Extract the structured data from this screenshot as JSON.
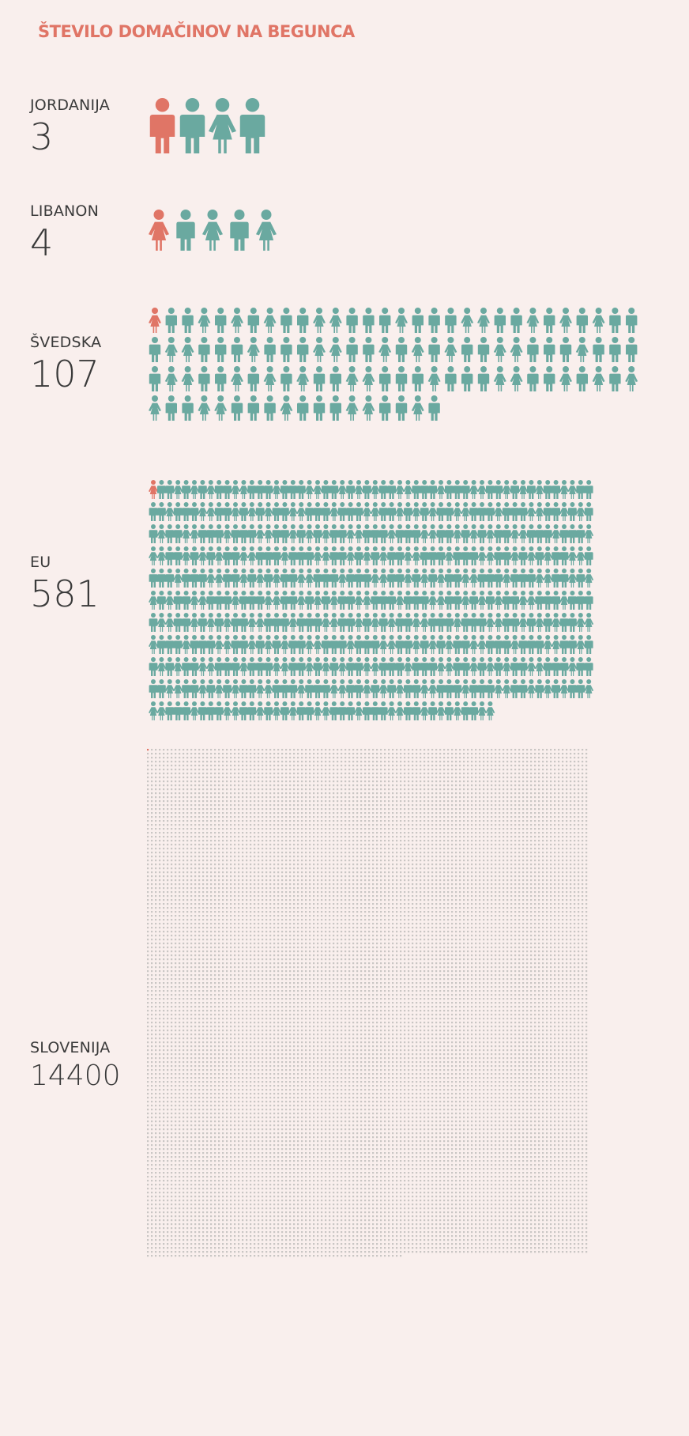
{
  "title": "ŠTEVILO DOMAČINOV NA BEGUNCA",
  "colors": {
    "refugee": "#e07566",
    "local": "#6aa9a0",
    "dot": "#c9c6c4",
    "background": "#f9efed",
    "text": "#3a3a3a"
  },
  "chart_data": {
    "type": "pictogram",
    "title": "ŠTEVILO DOMAČINOV NA BEGUNCA",
    "categories": [
      "JORDANIJA",
      "LIBANON",
      "ŠVEDSKA",
      "EU",
      "SLOVENIJA"
    ],
    "values": [
      3,
      4,
      107,
      581,
      14400
    ],
    "series": [
      {
        "name": "",
        "values": [
          3,
          4,
          107,
          581,
          14400
        ]
      }
    ]
  },
  "rows": [
    {
      "label": "JORDANIJA",
      "value": "3"
    },
    {
      "label": "LIBANON",
      "value": "4"
    },
    {
      "label": "ŠVEDSKA",
      "value": "107"
    },
    {
      "label": "EU",
      "value": "581"
    },
    {
      "label": "SLOVENIJA",
      "value": "14400"
    }
  ]
}
